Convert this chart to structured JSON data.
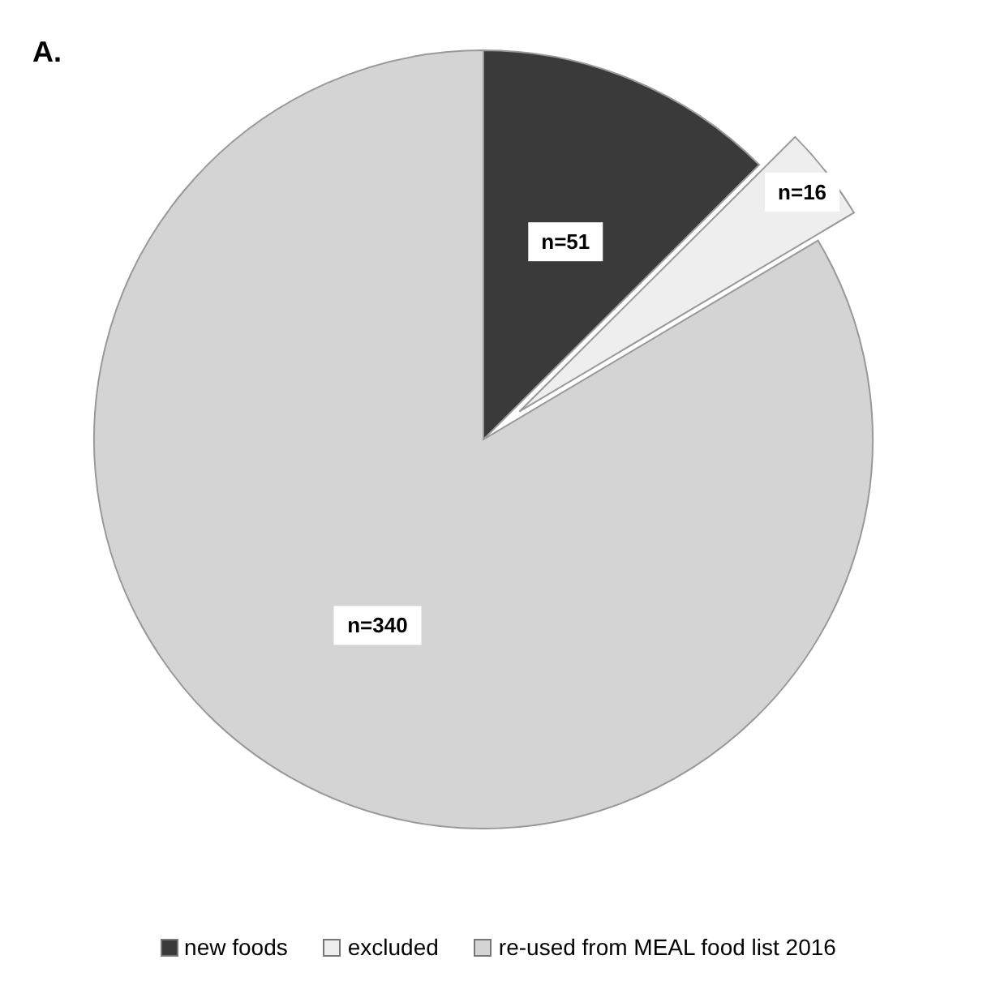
{
  "chart_data": {
    "type": "pie",
    "title": "A.",
    "categories": [
      "new foods",
      "excluded",
      "re-used from MEAL food list 2016"
    ],
    "values": [
      51,
      16,
      340
    ],
    "colors": [
      "#3a3a3a",
      "#eeeeee",
      "#d4d4d4"
    ],
    "value_labels": [
      "n=51",
      "n=16",
      "n=340"
    ],
    "legend": "bottom"
  }
}
